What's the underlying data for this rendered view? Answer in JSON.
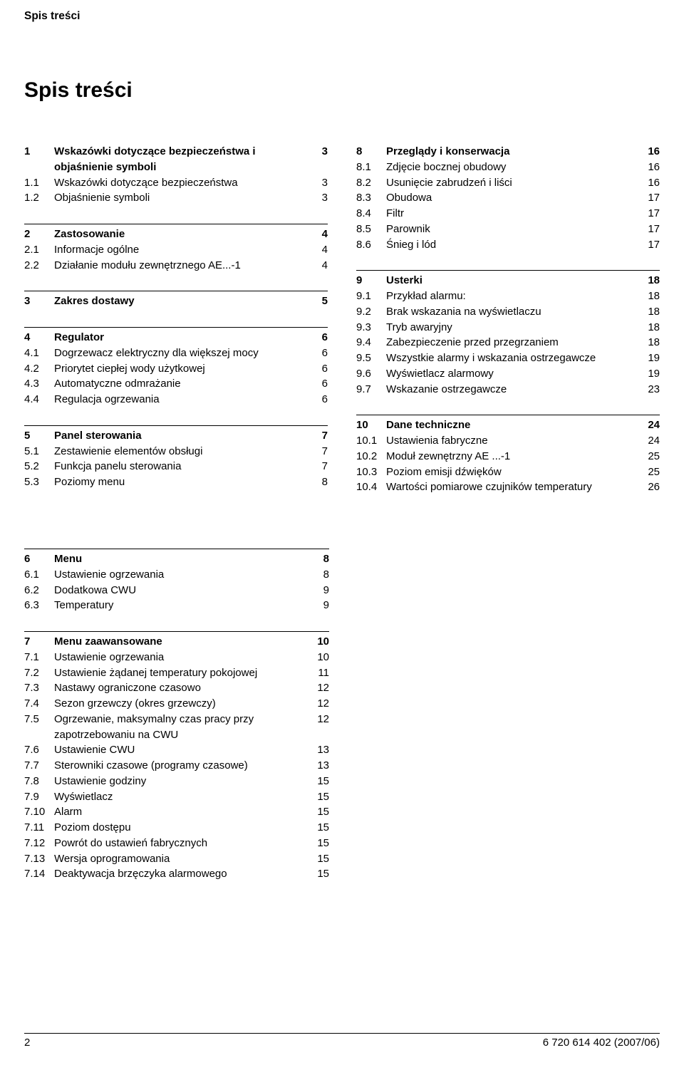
{
  "header": "Spis treści",
  "title": "Spis treści",
  "leftCol": [
    {
      "class": "standalone first",
      "rows": [
        {
          "n": "1",
          "l": "Wskazówki dotyczące bezpieczeństwa i objaśnienie symboli",
          "p": "3",
          "b": true
        },
        {
          "n": "1.1",
          "l": "Wskazówki dotyczące bezpieczeństwa",
          "p": "3"
        },
        {
          "n": "1.2",
          "l": "Objaśnienie symboli",
          "p": "3"
        }
      ]
    },
    {
      "class": "standalone",
      "rows": [
        {
          "n": "2",
          "l": "Zastosowanie",
          "p": "4",
          "b": true
        },
        {
          "n": "2.1",
          "l": "Informacje ogólne",
          "p": "4"
        },
        {
          "n": "2.2",
          "l": "Działanie modułu zewnętrznego AE...-1",
          "p": "4"
        }
      ]
    },
    {
      "class": "standalone",
      "rows": [
        {
          "n": "3",
          "l": "Zakres dostawy",
          "p": "5",
          "b": true
        }
      ]
    },
    {
      "class": "standalone",
      "rows": [
        {
          "n": "4",
          "l": "Regulator",
          "p": "6",
          "b": true
        },
        {
          "n": "4.1",
          "l": "Dogrzewacz elektryczny dla większej mocy",
          "p": "6"
        },
        {
          "n": "4.2",
          "l": "Priorytet ciepłej wody użytkowej",
          "p": "6"
        },
        {
          "n": "4.3",
          "l": "Automatyczne odmrażanie",
          "p": "6"
        },
        {
          "n": "4.4",
          "l": "Regulacja ogrzewania",
          "p": "6"
        }
      ]
    },
    {
      "class": "standalone",
      "rows": [
        {
          "n": "5",
          "l": "Panel sterowania",
          "p": "7",
          "b": true
        },
        {
          "n": "5.1",
          "l": "Zestawienie elementów obsługi",
          "p": "7"
        },
        {
          "n": "5.2",
          "l": "Funkcja panelu sterowania",
          "p": "7"
        },
        {
          "n": "5.3",
          "l": "Poziomy menu",
          "p": "8"
        }
      ]
    }
  ],
  "rightCol": [
    {
      "class": "standalone first",
      "rows": [
        {
          "n": "8",
          "l": "Przeglądy i konserwacja",
          "p": "16",
          "b": true
        },
        {
          "n": "8.1",
          "l": "Zdjęcie bocznej obudowy",
          "p": "16"
        },
        {
          "n": "8.2",
          "l": "Usunięcie zabrudzeń i liści",
          "p": "16"
        },
        {
          "n": "8.3",
          "l": "Obudowa",
          "p": "17"
        },
        {
          "n": "8.4",
          "l": "Filtr",
          "p": "17"
        },
        {
          "n": "8.5",
          "l": "Parownik",
          "p": "17"
        },
        {
          "n": "8.6",
          "l": "Śnieg i lód",
          "p": "17"
        }
      ]
    },
    {
      "class": "standalone",
      "rows": [
        {
          "n": "9",
          "l": "Usterki",
          "p": "18",
          "b": true
        },
        {
          "n": "9.1",
          "l": "Przykład alarmu:",
          "p": "18"
        },
        {
          "n": "9.2",
          "l": "Brak wskazania na wyświetlaczu",
          "p": "18"
        },
        {
          "n": "9.3",
          "l": "Tryb awaryjny",
          "p": "18"
        },
        {
          "n": "9.4",
          "l": "Zabezpieczenie przed przegrzaniem",
          "p": "18"
        },
        {
          "n": "9.5",
          "l": "Wszystkie alarmy i wskazania ostrzegawcze",
          "p": "19"
        },
        {
          "n": "9.6",
          "l": "Wyświetlacz alarmowy",
          "p": "19"
        },
        {
          "n": "9.7",
          "l": "Wskazanie ostrzegawcze",
          "p": "23"
        }
      ]
    },
    {
      "class": "standalone",
      "rows": [
        {
          "n": "10",
          "l": "Dane techniczne",
          "p": "24",
          "b": true
        },
        {
          "n": "10.1",
          "l": "Ustawienia fabryczne",
          "p": "24"
        },
        {
          "n": "10.2",
          "l": "Moduł zewnętrzny AE ...-1",
          "p": "25"
        },
        {
          "n": "10.3",
          "l": "Poziom emisji dźwięków",
          "p": "25"
        },
        {
          "n": "10.4",
          "l": "Wartości pomiarowe czujników temperatury",
          "p": "26"
        }
      ]
    }
  ],
  "bottom": [
    {
      "class": "standalone",
      "rows": [
        {
          "n": "6",
          "l": "Menu",
          "p": "8",
          "b": true
        },
        {
          "n": "6.1",
          "l": "Ustawienie ogrzewania",
          "p": "8"
        },
        {
          "n": "6.2",
          "l": "Dodatkowa CWU",
          "p": "9"
        },
        {
          "n": "6.3",
          "l": "Temperatury",
          "p": "9"
        }
      ]
    },
    {
      "class": "standalone",
      "rows": [
        {
          "n": "7",
          "l": "Menu zaawansowane",
          "p": "10",
          "b": true
        },
        {
          "n": "7.1",
          "l": "Ustawienie ogrzewania",
          "p": "10"
        },
        {
          "n": "7.2",
          "l": "Ustawienie żądanej temperatury pokojowej",
          "p": "11"
        },
        {
          "n": "7.3",
          "l": "Nastawy ograniczone czasowo",
          "p": "12"
        },
        {
          "n": "7.4",
          "l": "Sezon grzewczy (okres grzewczy)",
          "p": "12"
        },
        {
          "n": "7.5",
          "l": "Ogrzewanie, maksymalny czas pracy przy zapotrzebowaniu na CWU",
          "p": "12"
        },
        {
          "n": "7.6",
          "l": "Ustawienie CWU",
          "p": "13"
        },
        {
          "n": "7.7",
          "l": "Sterowniki czasowe (programy czasowe)",
          "p": "13"
        },
        {
          "n": "7.8",
          "l": "Ustawienie godziny",
          "p": "15"
        },
        {
          "n": "7.9",
          "l": "Wyświetlacz",
          "p": "15"
        },
        {
          "n": "7.10",
          "l": "Alarm",
          "p": "15"
        },
        {
          "n": "7.11",
          "l": "Poziom dostępu",
          "p": "15"
        },
        {
          "n": "7.12",
          "l": "Powrót do ustawień fabrycznych",
          "p": "15"
        },
        {
          "n": "7.13",
          "l": "Wersja oprogramowania",
          "p": "15"
        },
        {
          "n": "7.14",
          "l": "Deaktywacja brzęczyka alarmowego",
          "p": "15"
        }
      ]
    }
  ],
  "footer": {
    "page": "2",
    "doc": "6 720 614 402 (2007/06)"
  }
}
